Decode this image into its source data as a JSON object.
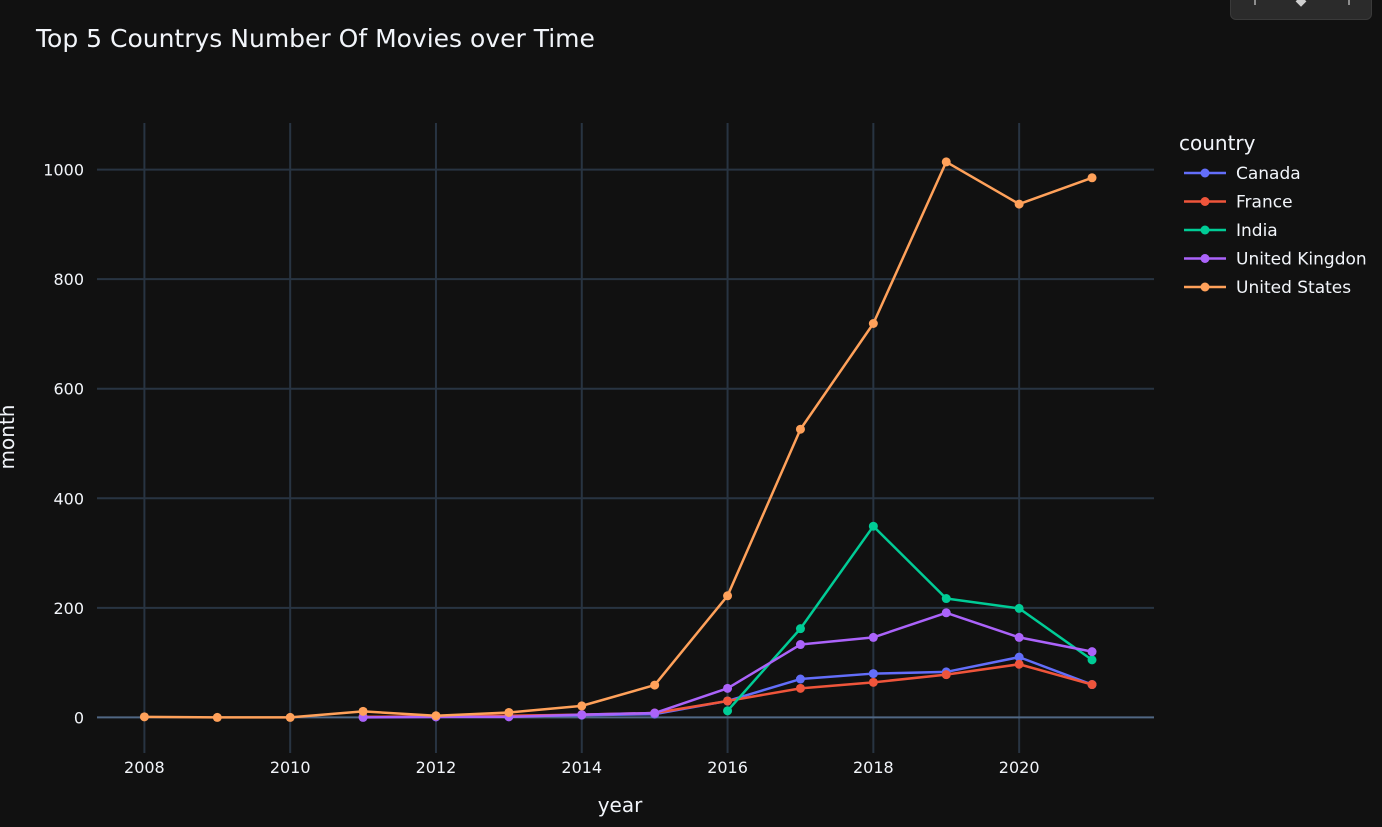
{
  "chart_data": {
    "type": "line",
    "title": "Top 5 Countrys Number Of Movies over Time",
    "xlabel": "year",
    "ylabel": "month",
    "xlim": [
      2007.35,
      2021.85
    ],
    "ylim": [
      -65,
      1085
    ],
    "xticks": [
      2008,
      2010,
      2012,
      2014,
      2016,
      2018,
      2020
    ],
    "yticks": [
      0,
      200,
      400,
      600,
      800,
      1000
    ],
    "grid": true,
    "legend": {
      "title": "country",
      "placement": "right"
    },
    "series": [
      {
        "name": "Canada",
        "color": "#636efa",
        "x": [
          2011,
          2012,
          2013,
          2014,
          2015,
          2016,
          2017,
          2018,
          2019,
          2020,
          2021
        ],
        "y": [
          1,
          1,
          2,
          4,
          6,
          30,
          70,
          80,
          83,
          110,
          60
        ]
      },
      {
        "name": "France",
        "color": "#ef553b",
        "x": [
          2011,
          2012,
          2013,
          2014,
          2015,
          2016,
          2017,
          2018,
          2019,
          2020,
          2021
        ],
        "y": [
          1,
          2,
          3,
          5,
          8,
          30,
          53,
          64,
          78,
          97,
          60
        ]
      },
      {
        "name": "India",
        "color": "#00cc96",
        "x": [
          2016,
          2017,
          2018,
          2019,
          2020,
          2021
        ],
        "y": [
          12,
          162,
          349,
          217,
          199,
          105
        ]
      },
      {
        "name": "United Kingdon",
        "color": "#ab63fa",
        "x": [
          2011,
          2012,
          2013,
          2014,
          2015,
          2016,
          2017,
          2018,
          2019,
          2020,
          2021
        ],
        "y": [
          0,
          1,
          1,
          5,
          8,
          53,
          133,
          146,
          191,
          146,
          120
        ]
      },
      {
        "name": "United States",
        "color": "#ffa15a",
        "x": [
          2008,
          2009,
          2010,
          2011,
          2012,
          2013,
          2014,
          2015,
          2016,
          2017,
          2018,
          2019,
          2020,
          2021
        ],
        "y": [
          1,
          0,
          0,
          11,
          3,
          9,
          21,
          59,
          222,
          526,
          719,
          1014,
          937,
          985
        ]
      }
    ]
  }
}
